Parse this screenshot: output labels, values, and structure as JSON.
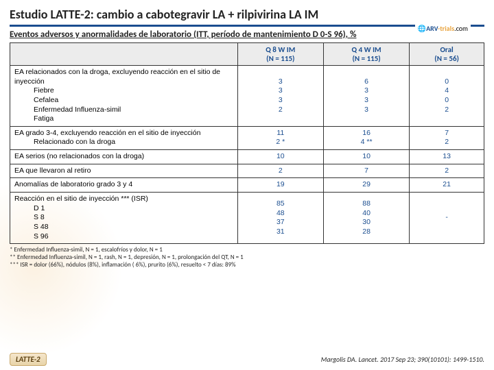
{
  "title": "Estudio LATTE-2: cambio a cabotegravir LA + rilpivirina LA IM",
  "subtitle": "Eventos adversos y anormalidades de laboratorio (ITT, período de mantenimiento D 0-S 96), %",
  "logo": {
    "left": "ARV",
    "right": "-trials",
    "suffix": ".com"
  },
  "cols": {
    "c1": "Q 8 W IM",
    "c1n": "(N = 115)",
    "c2": "Q 4 W IM",
    "c2n": "(N = 115)",
    "c3": "Oral",
    "c3n": "(N = 56)"
  },
  "rows": [
    {
      "label": "EA relacionados con la droga, excluyendo reacción en el sitio de inyección",
      "sub": [
        "Fiebre",
        "Cefalea",
        "Enfermedad Influenza-simil",
        "Fatiga"
      ],
      "v1": [
        "3",
        "3",
        "3",
        "2"
      ],
      "v2": [
        "6",
        "3",
        "3",
        "3"
      ],
      "v3": [
        "0",
        "4",
        "0",
        "2"
      ]
    },
    {
      "label": "EA grado 3-4, excluyendo reacción en el sitio de inyección",
      "sub": [
        "Relacionado con la droga"
      ],
      "v1": [
        "11",
        "2 *"
      ],
      "v2": [
        "16",
        "4 **"
      ],
      "v3": [
        "7",
        "2"
      ]
    },
    {
      "label": "EA serios (no relacionados con la droga)",
      "sub": [],
      "v1": [
        "10"
      ],
      "v2": [
        "10"
      ],
      "v3": [
        "13"
      ]
    },
    {
      "label": "EA que llevaron al retiro",
      "sub": [],
      "v1": [
        "2"
      ],
      "v2": [
        "7"
      ],
      "v3": [
        "2"
      ]
    },
    {
      "label": "Anomalías de laboratorio grado 3 y 4",
      "sub": [],
      "v1": [
        "19"
      ],
      "v2": [
        "29"
      ],
      "v3": [
        "21"
      ]
    },
    {
      "label": "Reacción en el sitio de inyección *** (ISR)",
      "sub": [
        "D 1",
        "S 8",
        "S 48",
        "S 96"
      ],
      "v1": [
        "85",
        "48",
        "37",
        "31"
      ],
      "v2": [
        "88",
        "40",
        "30",
        "28"
      ],
      "v3": [
        "-"
      ]
    }
  ],
  "fn1": "* Enfermedad Influenza-simil, N = 1, escalofríos y dolor, N = 1",
  "fn2": "** Enfermedad Influenza-simil, N = 1, rash, N = 1, depresión, N = 1, prolongación del QT, N = 1",
  "fn3": "*** ISR = dolor (66%), nódulos (8%), inflamación ( 6%), prurito (6%), resuelto < 7 días: 89%",
  "badge": "LATTE-2",
  "cite": "Margolis DA. Lancet. 2017 Sep 23; 390(10101): 1499-1510."
}
